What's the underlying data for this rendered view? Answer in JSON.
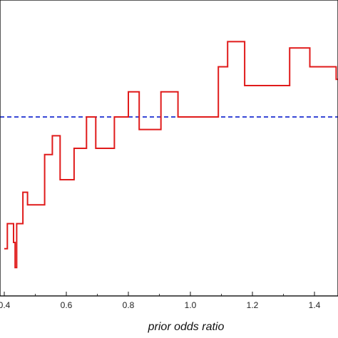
{
  "chart_data": {
    "type": "line",
    "xlabel": "prior  odds  ratio",
    "xlim": [
      0.4,
      1.5
    ],
    "ylim": [
      0,
      1
    ],
    "x_ticks": [
      "0.4",
      "0.6",
      "0.8",
      "1.0",
      "1.2",
      "1.4"
    ],
    "x_tick_values": [
      0.4,
      0.6,
      0.8,
      1.0,
      1.2,
      1.4
    ],
    "reference_line": {
      "y": 0.8,
      "style": "dashed",
      "color": "#1c2fd0"
    },
    "series": [
      {
        "color": "#e01b1b",
        "steps": [
          [
            0.4,
            0.59
          ],
          [
            0.41,
            0.63
          ],
          [
            0.43,
            0.6
          ],
          [
            0.435,
            0.56
          ],
          [
            0.44,
            0.63
          ],
          [
            0.46,
            0.68
          ],
          [
            0.475,
            0.66
          ],
          [
            0.53,
            0.74
          ],
          [
            0.555,
            0.77
          ],
          [
            0.58,
            0.7
          ],
          [
            0.625,
            0.75
          ],
          [
            0.665,
            0.8
          ],
          [
            0.695,
            0.75
          ],
          [
            0.755,
            0.8
          ],
          [
            0.8,
            0.84
          ],
          [
            0.835,
            0.78
          ],
          [
            0.905,
            0.84
          ],
          [
            0.96,
            0.8
          ],
          [
            1.09,
            0.88
          ],
          [
            1.12,
            0.92
          ],
          [
            1.175,
            0.85
          ],
          [
            1.32,
            0.91
          ],
          [
            1.385,
            0.88
          ],
          [
            1.47,
            0.86
          ]
        ],
        "x_end": 1.5
      }
    ]
  }
}
